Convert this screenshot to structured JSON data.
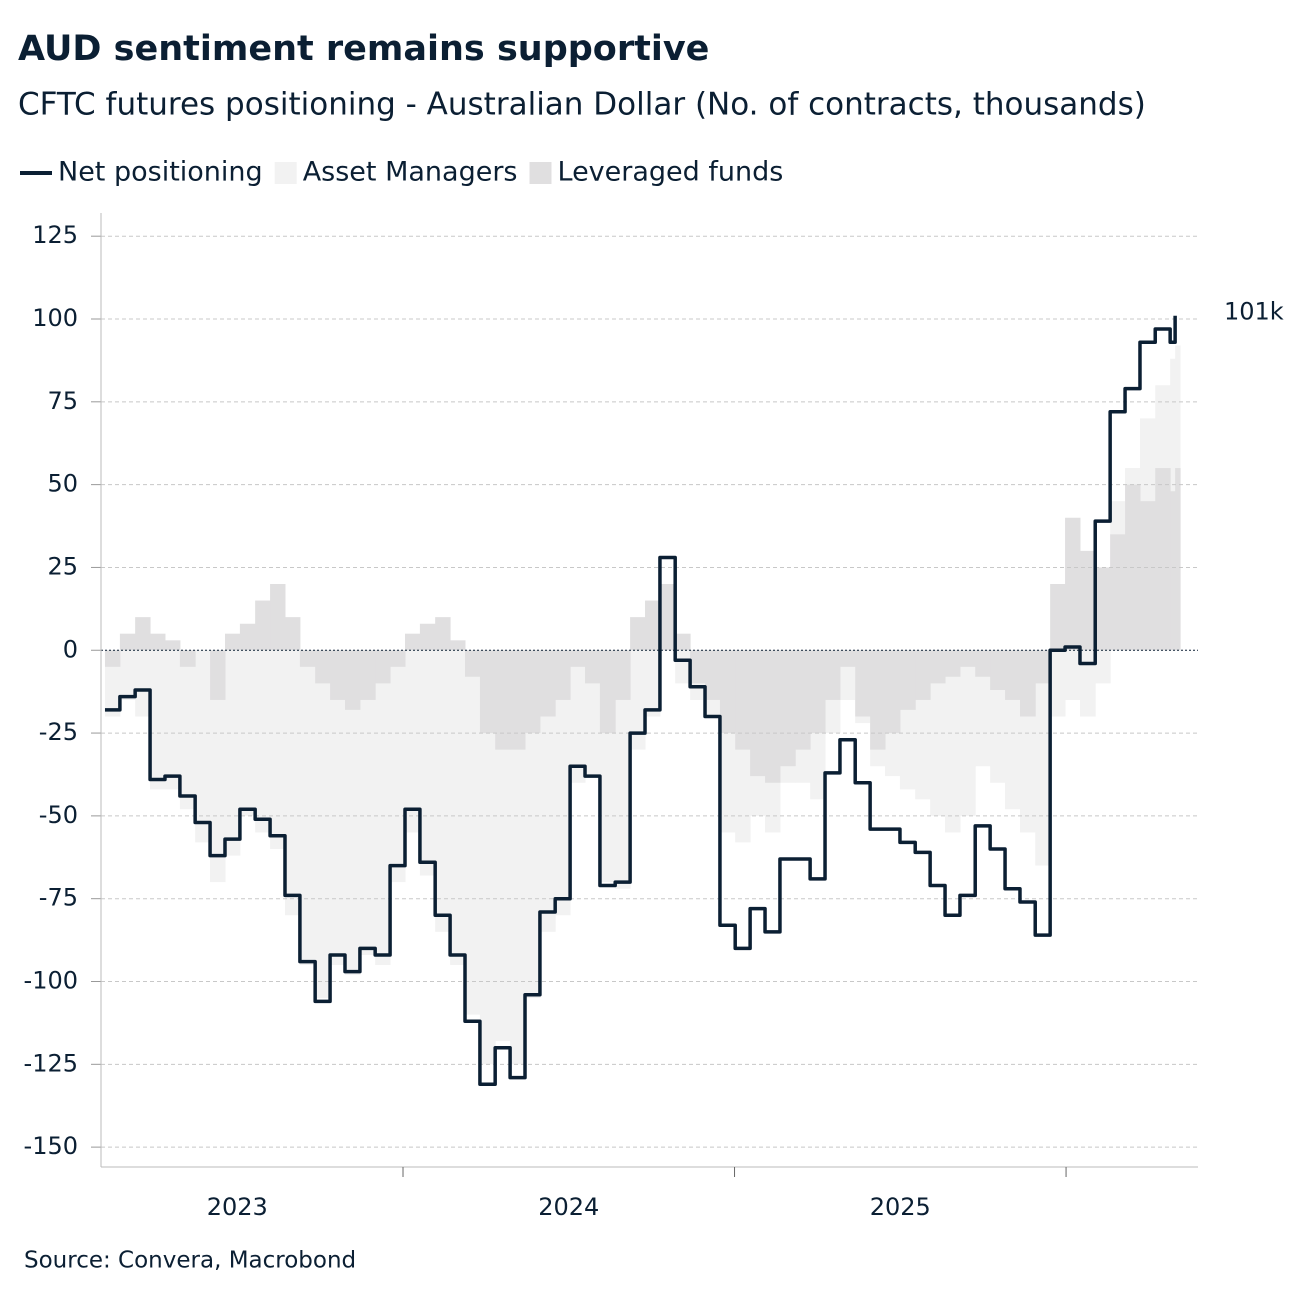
{
  "chart_data": {
    "type": "line",
    "title": "AUD sentiment remains supportive",
    "subtitle": "CFTC futures positioning - Australian Dollar (No. of contracts, thousands)",
    "source": "Source: Convera, Macrobond",
    "x": [
      2023.101,
      2023.146,
      2023.192,
      2023.237,
      2023.282,
      2023.327,
      2023.373,
      2023.418,
      2023.463,
      2023.508,
      2023.554,
      2023.599,
      2023.644,
      2023.689,
      2023.735,
      2023.78,
      2023.825,
      2023.87,
      2023.916,
      2023.961,
      2024.006,
      2024.051,
      2024.097,
      2024.142,
      2024.187,
      2024.232,
      2024.278,
      2024.323,
      2024.368,
      2024.413,
      2024.459,
      2024.504,
      2024.549,
      2024.594,
      2024.64,
      2024.685,
      2024.73,
      2024.775,
      2024.821,
      2024.866,
      2024.911,
      2024.956,
      2025.002,
      2025.047,
      2025.092,
      2025.137,
      2025.183,
      2025.228,
      2025.273,
      2025.318,
      2025.364,
      2025.409,
      2025.454,
      2025.499,
      2025.545,
      2025.59,
      2025.635,
      2025.68,
      2025.726,
      2025.771,
      2025.816,
      2025.861,
      2025.907,
      2025.952,
      2025.997,
      2026.042,
      2026.088,
      2026.133,
      2026.178,
      2026.223,
      2026.269,
      2026.314,
      2026.329
    ],
    "xlim": [
      2023.089,
      2026.398
    ],
    "xticks": [
      2024,
      2025,
      2026
    ],
    "xtick_labels": [
      {
        "value": 2023.5,
        "label": "2023"
      },
      {
        "value": 2024.5,
        "label": "2024"
      },
      {
        "value": 2025.5,
        "label": "2025"
      }
    ],
    "ylim": [
      -156,
      132
    ],
    "yticks": [
      -150,
      -125,
      -100,
      -75,
      -50,
      -25,
      0,
      25,
      50,
      75,
      100,
      125
    ],
    "grid": true,
    "legend": "top-left",
    "series": [
      {
        "name": "Net positioning",
        "color": "#0b1f33",
        "style": "step-line",
        "values": [
          -18,
          -14,
          -12,
          -39,
          -38,
          -44,
          -52,
          -62,
          -57,
          -48,
          -51,
          -56,
          -74,
          -94,
          -106,
          -92,
          -97,
          -90,
          -92,
          -65,
          -48,
          -64,
          -80,
          -92,
          -112,
          -131,
          -120,
          -129,
          -104,
          -79,
          -75,
          -35,
          -38,
          -71,
          -70,
          -25,
          -18,
          28,
          -3,
          -11,
          -20,
          -83,
          -90,
          -78,
          -85,
          -63,
          -63,
          -69,
          -37,
          -27,
          -40,
          -54,
          -54,
          -58,
          -61,
          -71,
          -80,
          -74,
          -53,
          -60,
          -72,
          -76,
          -86,
          0,
          1,
          -4,
          39,
          72,
          79,
          93,
          97,
          93,
          101
        ],
        "value_labels": [
          null,
          null,
          null,
          null,
          null,
          null,
          null,
          null,
          null,
          null,
          null,
          null,
          null,
          null,
          null,
          null,
          null,
          null,
          null,
          null,
          null,
          null,
          null,
          null,
          null,
          null,
          null,
          null,
          null,
          null,
          null,
          null,
          null,
          null,
          null,
          null,
          null,
          null,
          null,
          null,
          null,
          null,
          null,
          null,
          null,
          null,
          null,
          null,
          null,
          null,
          null,
          null,
          null,
          null,
          null,
          null,
          null,
          null,
          null,
          null,
          null,
          null,
          null,
          null,
          null,
          null,
          null,
          null,
          null,
          null,
          null,
          null,
          "101k"
        ]
      },
      {
        "name": "Asset Managers",
        "color": "#f2f2f2",
        "style": "bar",
        "values": [
          -20,
          -15,
          -20,
          -42,
          -42,
          -48,
          -58,
          -70,
          -62,
          -50,
          -55,
          -60,
          -80,
          -95,
          -105,
          -95,
          -98,
          -92,
          -95,
          -70,
          -55,
          -68,
          -85,
          -95,
          -110,
          -125,
          -118,
          -125,
          -105,
          -85,
          -80,
          -40,
          -38,
          -70,
          -72,
          -30,
          -20,
          10,
          -10,
          -15,
          -20,
          -55,
          -58,
          -50,
          -55,
          -40,
          -40,
          -45,
          -25,
          -15,
          -22,
          -35,
          -38,
          -42,
          -45,
          -50,
          -55,
          -50,
          -35,
          -40,
          -48,
          -55,
          -65,
          -20,
          -15,
          -20,
          -10,
          45,
          55,
          70,
          80,
          88,
          92
        ]
      },
      {
        "name": "Leveraged funds",
        "color": "#e0dfe0",
        "style": "bar",
        "values": [
          -5,
          5,
          10,
          5,
          3,
          -5,
          0,
          -15,
          5,
          8,
          15,
          20,
          10,
          -5,
          -10,
          -15,
          -18,
          -15,
          -10,
          -5,
          5,
          8,
          10,
          3,
          -8,
          -25,
          -30,
          -30,
          -25,
          -20,
          -15,
          -5,
          -10,
          -25,
          -15,
          10,
          15,
          20,
          5,
          -10,
          -15,
          -25,
          -30,
          -38,
          -40,
          -35,
          -30,
          -25,
          -15,
          -5,
          -20,
          -30,
          -25,
          -18,
          -15,
          -10,
          -8,
          -5,
          -8,
          -12,
          -15,
          -20,
          -10,
          20,
          40,
          30,
          25,
          35,
          50,
          45,
          55,
          48,
          55
        ]
      }
    ]
  }
}
